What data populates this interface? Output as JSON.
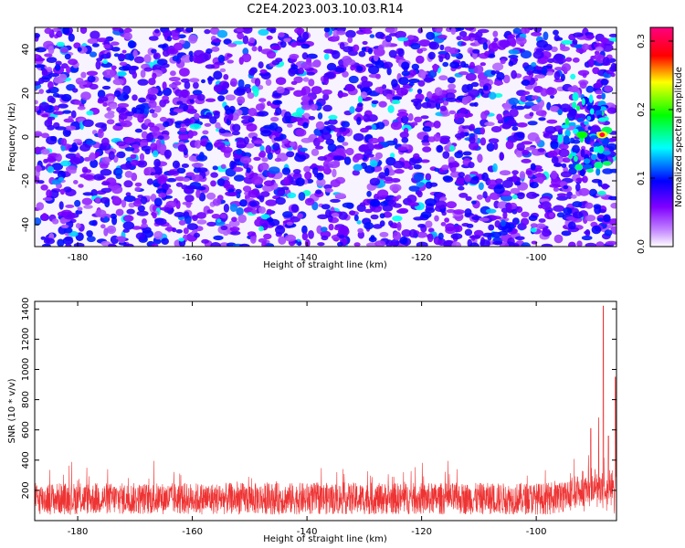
{
  "figure_title": "C2E4.2023.003.10.03.R14",
  "chart_data": [
    {
      "type": "heatmap",
      "xlabel": "Height of straight line (km)",
      "ylabel": "Frequency (Hz)",
      "xlim": [
        -187.5,
        -86
      ],
      "ylim": [
        -50,
        50
      ],
      "xticks": [
        -180,
        -160,
        -140,
        -120,
        -100
      ],
      "yticks": [
        -40,
        -20,
        0,
        20,
        40
      ],
      "colorbar": {
        "label": "Normalized spectral amplitude",
        "range": [
          0.0,
          0.32
        ],
        "ticks": [
          0.0,
          0.1,
          0.2,
          0.3
        ],
        "colormap": [
          "#ffffff",
          "#8a00ff",
          "#0000ff",
          "#00ffff",
          "#00ff00",
          "#ffff00",
          "#ff0000",
          "#ff0080"
        ]
      },
      "background_level": "low (~0.02–0.06) speckle across full range",
      "hotspot": {
        "x": -88.5,
        "y": 1,
        "value": 0.31
      }
    },
    {
      "type": "line",
      "xlabel": "Height of straight line (km)",
      "ylabel": "SNR (10 * v/v)",
      "xlim": [
        -187.5,
        -86
      ],
      "ylim": [
        0,
        1450
      ],
      "xticks": [
        -180,
        -160,
        -140,
        -120,
        -100
      ],
      "yticks": [
        200,
        400,
        600,
        800,
        1000,
        1200,
        1400
      ],
      "line_color": "#ee3333",
      "baseline_range": [
        40,
        250
      ],
      "peaks": [
        {
          "x": -88.3,
          "y": 1420
        },
        {
          "x": -86.2,
          "y": 950
        },
        {
          "x": -89.1,
          "y": 680
        },
        {
          "x": -90.5,
          "y": 610
        },
        {
          "x": -87.4,
          "y": 560
        }
      ]
    }
  ]
}
